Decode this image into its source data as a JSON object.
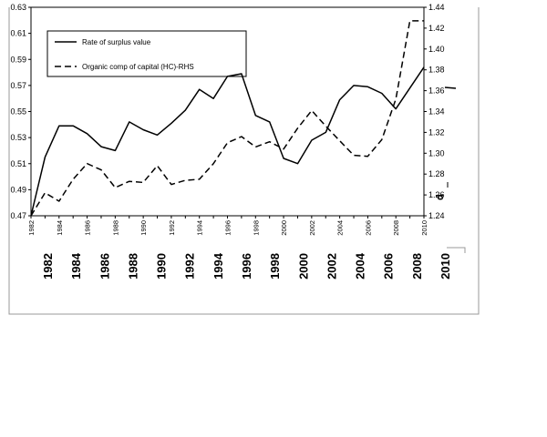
{
  "chart_data": {
    "type": "line",
    "x": [
      1982,
      1983,
      1984,
      1985,
      1986,
      1987,
      1988,
      1989,
      1990,
      1991,
      1992,
      1993,
      1994,
      1995,
      1996,
      1997,
      1998,
      1999,
      2000,
      2001,
      2002,
      2003,
      2004,
      2005,
      2006,
      2007,
      2008,
      2009,
      2010
    ],
    "series": [
      {
        "name": "Rate of surplus value",
        "axis": "left",
        "style": "solid",
        "values": [
          0.47,
          0.515,
          0.539,
          0.539,
          0.533,
          0.523,
          0.52,
          0.542,
          0.536,
          0.532,
          0.541,
          0.551,
          0.567,
          0.56,
          0.577,
          0.579,
          0.547,
          0.542,
          0.514,
          0.51,
          0.528,
          0.534,
          0.559,
          0.57,
          0.569,
          0.564,
          0.552,
          0.568,
          0.584
        ]
      },
      {
        "name": "Organic comp of capital (HC)-RHS",
        "axis": "right",
        "style": "dashed",
        "values": [
          1.24,
          1.262,
          1.254,
          1.275,
          1.29,
          1.284,
          1.267,
          1.273,
          1.272,
          1.288,
          1.27,
          1.274,
          1.275,
          1.29,
          1.31,
          1.316,
          1.306,
          1.311,
          1.304,
          1.324,
          1.341,
          1.326,
          1.312,
          1.298,
          1.297,
          1.313,
          1.352,
          1.427,
          1.427
        ]
      }
    ],
    "y_left": {
      "ylim": [
        0.47,
        0.63
      ],
      "ticks": [
        "0.47",
        "0.49",
        "0.51",
        "0.53",
        "0.55",
        "0.57",
        "0.59",
        "0.61",
        "0.63"
      ]
    },
    "y_right": {
      "ylim": [
        1.24,
        1.44
      ],
      "ticks": [
        "1.24",
        "1.26",
        "1.28",
        "1.30",
        "1.32",
        "1.34",
        "1.36",
        "1.38",
        "1.40",
        "1.42",
        "1.44"
      ]
    },
    "x_ticks": [
      "1982",
      "1984",
      "1986",
      "1988",
      "1990",
      "1992",
      "1994",
      "1996",
      "1998",
      "2000",
      "2002",
      "2004",
      "2006",
      "2008",
      "2010"
    ],
    "x_ticks_large": [
      "1982",
      "1984",
      "1986",
      "1988",
      "1990",
      "1992",
      "1994",
      "1996",
      "1998",
      "2000",
      "2002",
      "2004",
      "2006",
      "2008",
      "2010"
    ],
    "legend_labels": [
      "Rate of surplus value",
      "Organic comp of capital (HC)-RHS"
    ],
    "legend_placement": "top-left",
    "grid": false,
    "stray_mark": "d"
  }
}
